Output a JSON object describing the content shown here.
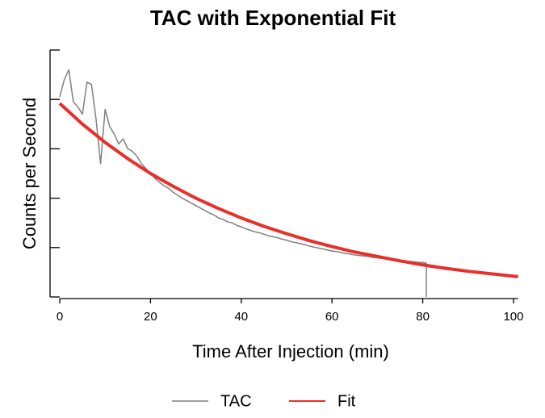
{
  "chart_data": {
    "type": "line",
    "title": "TAC with Exponential Fit",
    "x_label": "Time After Injection (min)",
    "y_label": "Counts per Second",
    "xlim": [
      0,
      101
    ],
    "xticks": [
      0,
      20,
      40,
      60,
      80,
      100
    ],
    "ylim": [
      0,
      5
    ],
    "yticks": [
      0,
      1,
      2,
      3,
      4,
      5
    ],
    "legend": "bottom",
    "series": [
      {
        "name": "TAC",
        "color": "#808080",
        "x": [
          0,
          1,
          2,
          3,
          4,
          5,
          6,
          7,
          8,
          9,
          10,
          11,
          12,
          13,
          14,
          15,
          16,
          17,
          18,
          19,
          20,
          21,
          22,
          23,
          24,
          25,
          26,
          27,
          28,
          29,
          30,
          31,
          32,
          33,
          34,
          35,
          36,
          37,
          38,
          39,
          40,
          41,
          42,
          43,
          44,
          45,
          46,
          47,
          48,
          49,
          50,
          51,
          52,
          53,
          54,
          55,
          56,
          57,
          58,
          59,
          60,
          61,
          62,
          63,
          64,
          65,
          66,
          67,
          68,
          69,
          70,
          71,
          72,
          73,
          74,
          75,
          76,
          77,
          78,
          79,
          80,
          80.8,
          80.8
        ],
        "values": [
          4.05,
          4.4,
          4.6,
          3.95,
          3.85,
          3.7,
          4.35,
          4.3,
          3.6,
          2.7,
          3.8,
          3.45,
          3.3,
          3.1,
          3.2,
          3.0,
          2.95,
          2.85,
          2.7,
          2.6,
          2.5,
          2.4,
          2.32,
          2.25,
          2.2,
          2.12,
          2.06,
          2.0,
          1.95,
          1.9,
          1.85,
          1.8,
          1.75,
          1.7,
          1.66,
          1.6,
          1.57,
          1.52,
          1.5,
          1.45,
          1.42,
          1.38,
          1.35,
          1.32,
          1.3,
          1.27,
          1.24,
          1.22,
          1.2,
          1.17,
          1.15,
          1.12,
          1.1,
          1.08,
          1.06,
          1.03,
          1.01,
          0.99,
          0.97,
          0.95,
          0.93,
          0.92,
          0.9,
          0.88,
          0.87,
          0.85,
          0.84,
          0.83,
          0.82,
          0.8,
          0.79,
          0.78,
          0.77,
          0.76,
          0.75,
          0.74,
          0.73,
          0.72,
          0.71,
          0.7,
          0.7,
          0.68,
          0
        ]
      },
      {
        "name": "Fit",
        "color": "#e8302a",
        "x": [
          0,
          5,
          10,
          15,
          20,
          25,
          30,
          35,
          40,
          45,
          50,
          55,
          60,
          65,
          70,
          75,
          80,
          85,
          90,
          95,
          100,
          101
        ],
        "values": [
          3.92,
          3.5,
          3.13,
          2.8,
          2.5,
          2.24,
          2.0,
          1.79,
          1.6,
          1.43,
          1.28,
          1.14,
          1.02,
          0.91,
          0.82,
          0.73,
          0.65,
          0.58,
          0.52,
          0.47,
          0.42,
          0.41
        ]
      }
    ]
  }
}
